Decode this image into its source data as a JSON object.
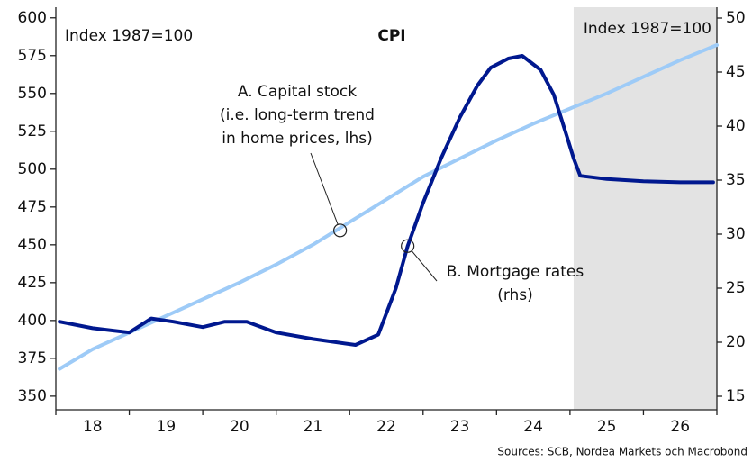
{
  "chart_data": {
    "type": "line",
    "title": "CPI",
    "left_note": "Index 1987=100",
    "right_note": "Index 1987=100",
    "source": "Sources: SCB, Nordea Markets och Macrobond",
    "xlim": [
      2018,
      2027
    ],
    "xticks": [
      2018,
      2019,
      2020,
      2021,
      2022,
      2023,
      2024,
      2025,
      2026,
      2027
    ],
    "xlabels": [
      {
        "value": 2018.5,
        "label": "18"
      },
      {
        "value": 2019.5,
        "label": "19"
      },
      {
        "value": 2020.5,
        "label": "20"
      },
      {
        "value": 2021.5,
        "label": "21"
      },
      {
        "value": 2022.5,
        "label": "22"
      },
      {
        "value": 2023.5,
        "label": "23"
      },
      {
        "value": 2024.5,
        "label": "24"
      },
      {
        "value": 2025.5,
        "label": "25"
      },
      {
        "value": 2026.5,
        "label": "26"
      }
    ],
    "ylim": [
      341,
      607
    ],
    "yticks": [
      350,
      375,
      400,
      425,
      450,
      475,
      500,
      525,
      550,
      575,
      600
    ],
    "y2lim": [
      13.75,
      51
    ],
    "y2ticks": [
      15,
      20,
      25,
      30,
      35,
      40,
      45,
      50
    ],
    "shade_from": 2025.05,
    "shade_color": "#e3e3e3",
    "series": [
      {
        "name": "A. Capital stock",
        "color": "#9ecbf7",
        "axis": "y",
        "x": [
          2018.05,
          2018.5,
          2019,
          2019.5,
          2020,
          2020.5,
          2021,
          2021.5,
          2022,
          2022.5,
          2023,
          2023.5,
          2024,
          2024.5,
          2025,
          2025.5,
          2026,
          2026.5,
          2027
        ],
        "values": [
          368,
          381,
          392,
          403,
          414,
          425,
          437,
          450,
          465,
          480,
          495,
          507,
          519,
          530,
          540,
          550,
          561,
          572,
          582
        ]
      },
      {
        "name": "B. Mortgage rates",
        "color": "#00188f",
        "axis": "y2",
        "x": [
          2018.05,
          2018.5,
          2019,
          2019.3,
          2019.6,
          2020,
          2020.3,
          2020.6,
          2021,
          2021.5,
          2022.08,
          2022.39,
          2022.63,
          2022.79,
          2023,
          2023.25,
          2023.5,
          2023.74,
          2023.92,
          2024.16,
          2024.35,
          2024.6,
          2024.78,
          2024.96,
          2025.05,
          2025.14,
          2025.5,
          2026,
          2026.5,
          2026.95
        ],
        "values": [
          21.9,
          21.3,
          20.9,
          22.2,
          21.9,
          21.4,
          21.9,
          21.9,
          20.9,
          20.3,
          19.75,
          20.7,
          25,
          28.9,
          32.9,
          37.1,
          40.8,
          43.75,
          45.4,
          46.25,
          46.5,
          45.2,
          42.9,
          39,
          37,
          35.4,
          35.1,
          34.9,
          34.8,
          34.8
        ]
      }
    ],
    "annotations": [
      {
        "lines": [
          "A. Capital stock",
          "(i.e. long-term trend",
          "in home prices, lhs)"
        ],
        "x": 2021.87,
        "y": 459.5,
        "axis": "y"
      },
      {
        "lines": [
          "B. Mortgage rates",
          "(rhs)"
        ],
        "x": 2022.79,
        "y": 28.9,
        "axis": "y2"
      }
    ]
  }
}
